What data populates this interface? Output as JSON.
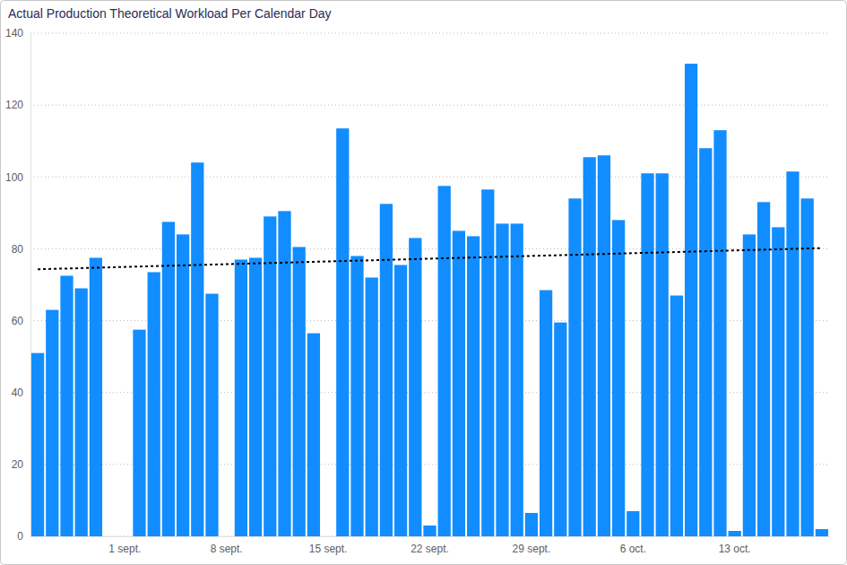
{
  "chart_data": {
    "type": "bar",
    "title": "Actual Production Theoretical Workload Per Calendar Day",
    "categories": [
      null,
      null,
      null,
      null,
      null,
      null,
      "1 sept.",
      null,
      null,
      null,
      null,
      null,
      null,
      "8 sept.",
      null,
      null,
      null,
      null,
      null,
      null,
      "15 sept.",
      null,
      null,
      null,
      null,
      null,
      null,
      "22 sept.",
      null,
      null,
      null,
      null,
      null,
      null,
      "29 sept.",
      null,
      null,
      null,
      null,
      null,
      null,
      "6 oct.",
      null,
      null,
      null,
      null,
      null,
      null,
      "13 oct.",
      null,
      null,
      null,
      null,
      null,
      null
    ],
    "values": [
      51,
      63,
      72.5,
      69,
      77.5,
      null,
      null,
      57.5,
      73.5,
      87.5,
      84,
      104,
      67.5,
      null,
      77,
      77.5,
      89,
      90.5,
      80.5,
      56.5,
      null,
      113.5,
      78,
      72,
      92.5,
      75.5,
      83,
      3,
      97.5,
      85,
      83.5,
      96.5,
      87,
      87,
      6.5,
      68.5,
      59.5,
      94,
      105.5,
      106,
      88,
      7,
      101,
      101,
      67,
      131.5,
      108,
      113,
      1.5,
      84,
      93,
      86,
      101.5,
      94,
      2
    ],
    "color": "#118DFF",
    "ylim": [
      0,
      140
    ],
    "yticks": [
      0,
      20,
      40,
      60,
      80,
      100,
      120,
      140
    ],
    "grid": true,
    "trend": {
      "values": [
        74.3,
        80.2
      ],
      "color": "#000000",
      "line_style": "dotted"
    }
  }
}
